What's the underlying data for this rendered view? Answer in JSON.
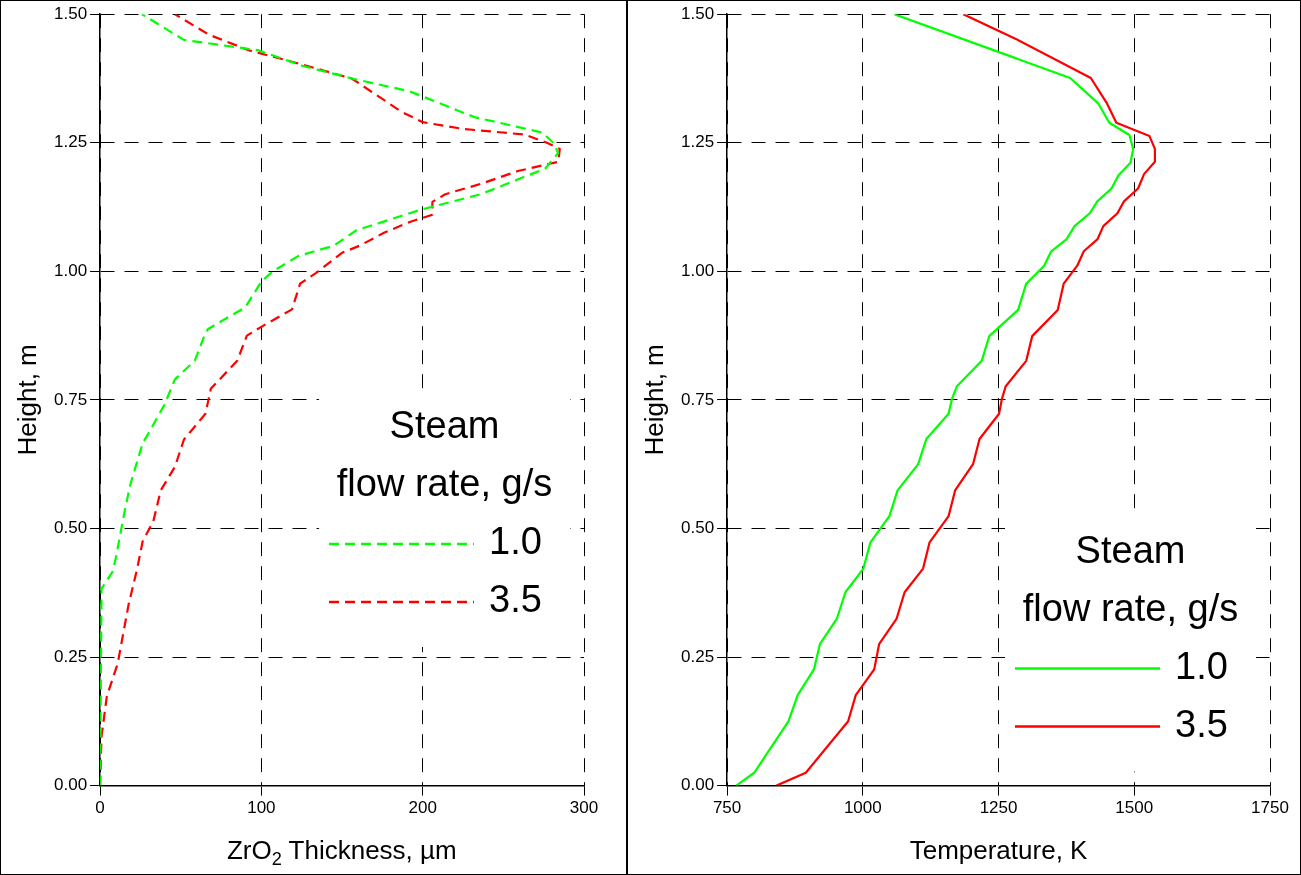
{
  "chart_data": [
    {
      "type": "line",
      "xlabel": "ZrO$_{2}$ Thickness, µm",
      "ylabel": "Height, m",
      "legend_title": "Steam\nflow rate, g/s",
      "xlim": [
        0,
        300
      ],
      "xticks": [
        0,
        100,
        200,
        300
      ],
      "ylim": [
        0,
        1.5
      ],
      "yticks": [
        {
          "value": 0,
          "label": "0.00"
        },
        0.25,
        {
          "value": 0.5,
          "label": "0.50"
        },
        0.75,
        {
          "value": 1,
          "label": "1.00"
        },
        1.25,
        {
          "value": 1.5,
          "label": "1.50"
        }
      ],
      "grid": true,
      "legend": "right",
      "marker": "none",
      "line_style": "dashed",
      "series": [
        {
          "name": "1.0",
          "color": "#00ff00",
          "x": [
            0,
            0.9,
            7.6,
            9.8,
            15.3,
            18.7,
            26.4,
            30.9,
            39.8,
            46.4,
            58.7,
            65.3,
            67,
            90,
            100,
            107,
            123,
            145,
            159,
            199,
            236,
            276,
            284,
            281,
            274,
            232,
            192,
            156,
            125,
            98,
            52,
            26
          ],
          "values": [
            0,
            0.383,
            0.415,
            0.443,
            0.535,
            0.585,
            0.666,
            0.69,
            0.74,
            0.79,
            0.826,
            0.88,
            0.888,
            0.93,
            0.98,
            1,
            1.03,
            1.05,
            1.08,
            1.12,
            1.15,
            1.2,
            1.23,
            1.25,
            1.27,
            1.3,
            1.35,
            1.375,
            1.4,
            1.43,
            1.45,
            1.5
          ]
        },
        {
          "name": "3.5",
          "color": "#ff0000",
          "x": [
            0,
            0.9,
            4.2,
            10.9,
            17.6,
            23,
            26.4,
            33,
            37.6,
            46.4,
            52,
            65.3,
            68.7,
            85,
            91,
            101,
            119,
            124,
            134,
            150,
            161,
            176,
            192,
            206,
            206,
            214,
            236,
            259,
            284,
            285,
            277,
            263,
            225,
            200,
            187,
            156,
            139,
            116,
            92,
            67.6,
            46.4
          ],
          "values": [
            0,
            0.096,
            0.174,
            0.237,
            0.351,
            0.422,
            0.475,
            0.514,
            0.574,
            0.62,
            0.673,
            0.723,
            0.772,
            0.826,
            0.875,
            0.894,
            0.926,
            0.976,
            0.997,
            1.036,
            1.05,
            1.075,
            1.096,
            1.11,
            1.135,
            1.15,
            1.17,
            1.195,
            1.213,
            1.238,
            1.25,
            1.266,
            1.277,
            1.29,
            1.31,
            1.375,
            1.39,
            1.41,
            1.43,
            1.46,
            1.5
          ]
        }
      ]
    },
    {
      "type": "line",
      "xlabel": "Temperature, K",
      "ylabel": "Height, m",
      "legend_title": "Steam\nflow rate, g/s",
      "xlim": [
        750,
        1750
      ],
      "xticks": [
        750,
        1000,
        1250,
        1500,
        1750
      ],
      "ylim": [
        0,
        1.5
      ],
      "yticks": [
        {
          "value": 0,
          "label": "0.00"
        },
        0.25,
        {
          "value": 0.5,
          "label": "0.50"
        },
        0.75,
        {
          "value": 1,
          "label": "1.00"
        },
        1.25,
        {
          "value": 1.5,
          "label": "1.50"
        }
      ],
      "grid": true,
      "legend": "bottom right",
      "marker": "none",
      "line_style": "solid",
      "series": [
        {
          "name": "1.0",
          "color": "#00ff00",
          "x": [
            767,
            800,
            863,
            880,
            910,
            921,
            952,
            968,
            1001,
            1014,
            1049,
            1064,
            1102,
            1117,
            1158,
            1164,
            1173,
            1219,
            1233,
            1286,
            1301,
            1334,
            1347,
            1375,
            1390,
            1418,
            1432,
            1458,
            1471,
            1493,
            1498,
            1491,
            1454,
            1434,
            1382,
            1058
          ],
          "values": [
            0,
            0.025,
            0.125,
            0.176,
            0.226,
            0.275,
            0.324,
            0.376,
            0.422,
            0.473,
            0.524,
            0.574,
            0.625,
            0.674,
            0.723,
            0.751,
            0.776,
            0.826,
            0.874,
            0.925,
            0.976,
            1.011,
            1.039,
            1.062,
            1.088,
            1.113,
            1.136,
            1.161,
            1.187,
            1.211,
            1.238,
            1.265,
            1.289,
            1.326,
            1.376,
            1.5
          ]
        },
        {
          "name": "3.5",
          "color": "#ff0000",
          "x": [
            841,
            895,
            973,
            987,
            1021,
            1030,
            1062,
            1077,
            1111,
            1123,
            1158,
            1170,
            1203,
            1215,
            1251,
            1256,
            1263,
            1301,
            1312,
            1359,
            1370,
            1395,
            1407,
            1432,
            1443,
            1469,
            1481,
            1507,
            1518,
            1538,
            1538,
            1528,
            1467,
            1450,
            1420,
            1282,
            1185
          ],
          "values": [
            0,
            0.025,
            0.125,
            0.176,
            0.226,
            0.275,
            0.324,
            0.376,
            0.422,
            0.473,
            0.524,
            0.574,
            0.625,
            0.674,
            0.723,
            0.751,
            0.776,
            0.826,
            0.874,
            0.925,
            0.976,
            1.011,
            1.039,
            1.062,
            1.088,
            1.113,
            1.136,
            1.161,
            1.189,
            1.213,
            1.238,
            1.263,
            1.289,
            1.326,
            1.376,
            1.452,
            1.5
          ]
        }
      ]
    }
  ]
}
